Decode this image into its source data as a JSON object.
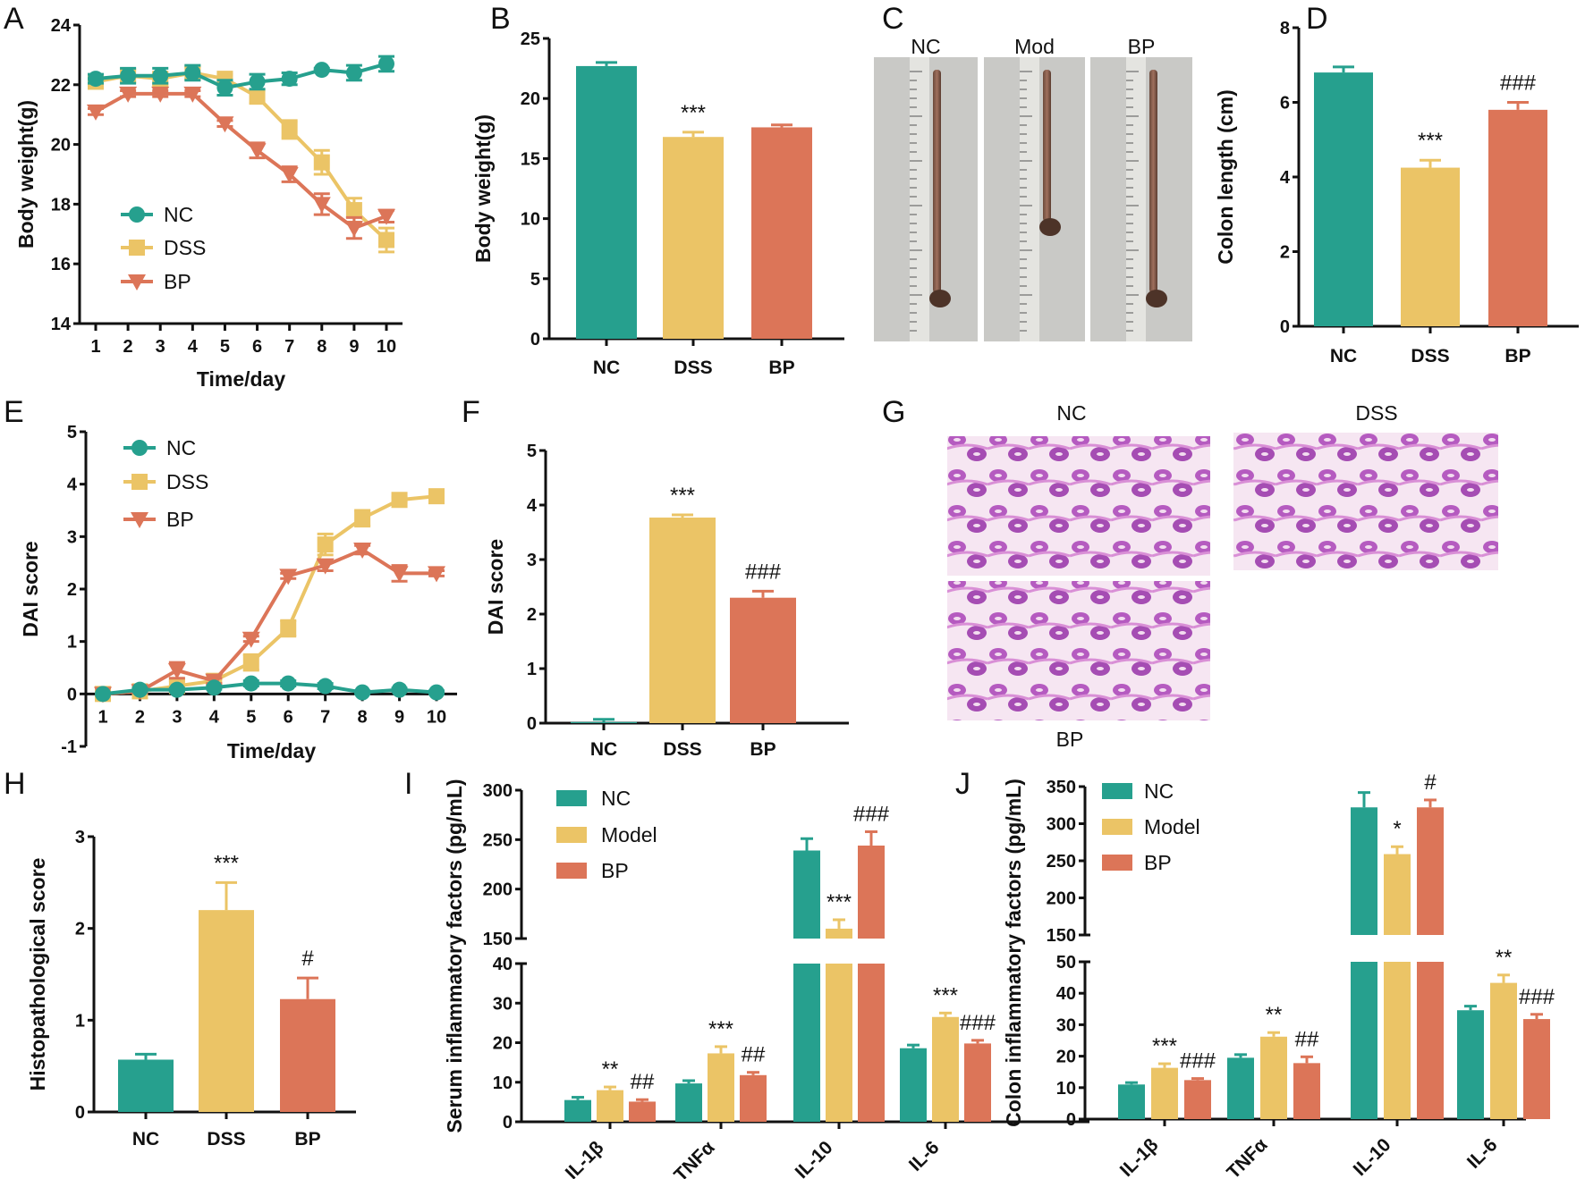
{
  "colors": {
    "NC": "#26a08e",
    "DSS": "#ebc466",
    "BP": "#dc7558",
    "axis": "#111111"
  },
  "panel_labels": [
    "A",
    "B",
    "C",
    "D",
    "E",
    "F",
    "G",
    "H",
    "I",
    "J"
  ],
  "photos_C": {
    "labels": [
      "NC",
      "Mod",
      "BP"
    ]
  },
  "histology_G": {
    "labels": [
      "NC",
      "DSS",
      "BP"
    ]
  },
  "chart_data": [
    {
      "id": "A",
      "type": "line",
      "title": "",
      "xlabel": "Time/day",
      "ylabel": "Body weight(g)",
      "ylim": [
        14,
        24
      ],
      "yticks": [
        14,
        16,
        18,
        20,
        22,
        24
      ],
      "x": [
        1,
        2,
        3,
        4,
        5,
        6,
        7,
        8,
        9,
        10
      ],
      "legend_position": "bottom-left",
      "series": [
        {
          "name": "NC",
          "marker": "circle",
          "values": [
            22.2,
            22.3,
            22.3,
            22.4,
            21.9,
            22.1,
            22.2,
            22.5,
            22.4,
            22.7
          ],
          "err": [
            0.15,
            0.25,
            0.25,
            0.25,
            0.25,
            0.25,
            0.2,
            0.05,
            0.25,
            0.25
          ]
        },
        {
          "name": "DSS",
          "marker": "square",
          "values": [
            22.1,
            22.3,
            22.2,
            22.4,
            22.2,
            21.6,
            20.5,
            19.4,
            17.8,
            16.8
          ],
          "err": [
            0.2,
            0.2,
            0.2,
            0.2,
            0.15,
            0.2,
            0.3,
            0.4,
            0.4,
            0.4
          ]
        },
        {
          "name": "BP",
          "marker": "triangle-down",
          "values": [
            21.1,
            21.7,
            21.7,
            21.7,
            20.7,
            19.8,
            19.0,
            18.0,
            17.2,
            17.6
          ],
          "err": [
            0.1,
            0.1,
            0.1,
            0.1,
            0.1,
            0.25,
            0.25,
            0.35,
            0.35,
            0.2
          ]
        }
      ]
    },
    {
      "id": "B",
      "type": "bar",
      "title": "",
      "xlabel": "",
      "ylabel": "Body weight(g)",
      "ylim": [
        0,
        25
      ],
      "yticks": [
        0,
        5,
        10,
        15,
        20,
        25
      ],
      "categories": [
        "NC",
        "DSS",
        "BP"
      ],
      "values": [
        22.7,
        16.8,
        17.6
      ],
      "err": [
        0.3,
        0.4,
        0.2
      ],
      "annotations": [
        "",
        "***",
        ""
      ]
    },
    {
      "id": "D",
      "type": "bar",
      "title": "",
      "xlabel": "",
      "ylabel": "Colon length (cm)",
      "ylim": [
        0,
        8
      ],
      "yticks": [
        0,
        2,
        4,
        6,
        8
      ],
      "categories": [
        "NC",
        "DSS",
        "BP"
      ],
      "values": [
        6.8,
        4.25,
        5.8
      ],
      "err": [
        0.15,
        0.2,
        0.2
      ],
      "annotations": [
        "",
        "***",
        "###"
      ]
    },
    {
      "id": "E",
      "type": "line",
      "title": "",
      "xlabel": "Time/day",
      "ylabel": "DAI score",
      "ylim": [
        -1,
        5
      ],
      "yticks": [
        -1,
        0,
        1,
        2,
        3,
        4,
        5
      ],
      "x": [
        1,
        2,
        3,
        4,
        5,
        6,
        7,
        8,
        9,
        10
      ],
      "legend_position": "top-left",
      "series": [
        {
          "name": "NC",
          "marker": "circle",
          "values": [
            0,
            0.08,
            0.08,
            0.12,
            0.2,
            0.2,
            0.15,
            0.03,
            0.08,
            0.03
          ],
          "err": [
            0,
            0.03,
            0.03,
            0.03,
            0.05,
            0.05,
            0.05,
            0.03,
            0.03,
            0.03
          ]
        },
        {
          "name": "DSS",
          "marker": "square",
          "values": [
            0,
            0.05,
            0.15,
            0.25,
            0.6,
            1.25,
            2.85,
            3.35,
            3.7,
            3.77
          ],
          "err": [
            0,
            0.03,
            0.1,
            0.05,
            0.15,
            0.15,
            0.2,
            0.15,
            0.05,
            0.05
          ]
        },
        {
          "name": "BP",
          "marker": "triangle-down",
          "values": [
            0,
            0.05,
            0.45,
            0.25,
            1.05,
            2.25,
            2.45,
            2.75,
            2.3,
            2.3
          ],
          "err": [
            0,
            0.03,
            0.15,
            0.05,
            0.05,
            0.05,
            0.1,
            0.08,
            0.15,
            0.05
          ]
        }
      ]
    },
    {
      "id": "F",
      "type": "bar",
      "title": "",
      "xlabel": "",
      "ylabel": "DAI score",
      "ylim": [
        0,
        5
      ],
      "yticks": [
        0,
        1,
        2,
        3,
        4,
        5
      ],
      "categories": [
        "NC",
        "DSS",
        "BP"
      ],
      "values": [
        0.02,
        3.77,
        2.3
      ],
      "err": [
        0.05,
        0.05,
        0.12
      ],
      "annotations": [
        "",
        "***",
        "###"
      ]
    },
    {
      "id": "H",
      "type": "bar",
      "title": "",
      "xlabel": "",
      "ylabel": "Histopathological score",
      "ylim": [
        0,
        3
      ],
      "yticks": [
        0,
        1,
        2,
        3
      ],
      "categories": [
        "NC",
        "DSS",
        "BP"
      ],
      "values": [
        0.57,
        2.2,
        1.23
      ],
      "err": [
        0.06,
        0.3,
        0.23
      ],
      "annotations": [
        "",
        "***",
        "#"
      ]
    },
    {
      "id": "I",
      "type": "bar",
      "title": "",
      "xlabel": "",
      "ylabel": "Serum inflammatory factors (pg/mL)",
      "ylim": [
        0,
        300
      ],
      "axis_break": {
        "lower": [
          0,
          40
        ],
        "upper": [
          150,
          300
        ]
      },
      "yticks_lower": [
        0,
        10,
        20,
        30,
        40
      ],
      "yticks_upper": [
        150,
        200,
        250,
        300
      ],
      "categories": [
        "IL-1β",
        "TNFα",
        "IL-10",
        "IL-6"
      ],
      "legend_position": "top-left",
      "series": [
        {
          "name": "NC",
          "values": [
            5.5,
            9.7,
            239,
            18.6
          ],
          "err": [
            0.7,
            0.7,
            12,
            0.8
          ],
          "annotations": [
            "",
            "",
            "",
            ""
          ]
        },
        {
          "name": "Model",
          "values": [
            8.0,
            17.3,
            160,
            26.5
          ],
          "err": [
            0.8,
            1.7,
            9,
            1.0
          ],
          "annotations": [
            "**",
            "***",
            "***",
            "***"
          ]
        },
        {
          "name": "BP",
          "values": [
            5.1,
            11.8,
            244,
            19.8
          ],
          "err": [
            0.5,
            0.7,
            14,
            0.8
          ],
          "annotations": [
            "##",
            "##",
            "###",
            "###"
          ]
        }
      ]
    },
    {
      "id": "J",
      "type": "bar",
      "title": "",
      "xlabel": "",
      "ylabel": "Colon inflammatory factors (pg/mL)",
      "ylim": [
        0,
        350
      ],
      "axis_break": {
        "lower": [
          0,
          50
        ],
        "upper": [
          150,
          350
        ]
      },
      "yticks_lower": [
        0,
        10,
        20,
        30,
        40,
        50
      ],
      "yticks_upper": [
        150,
        200,
        250,
        300,
        350
      ],
      "categories": [
        "IL-1β",
        "TNFα",
        "IL-10",
        "IL-6"
      ],
      "legend_position": "top-left",
      "series": [
        {
          "name": "NC",
          "values": [
            11.0,
            19.5,
            322,
            34.6
          ],
          "err": [
            0.6,
            1.0,
            20,
            1.3
          ],
          "annotations": [
            "",
            "",
            "",
            ""
          ]
        },
        {
          "name": "Model",
          "values": [
            16.3,
            26.2,
            259,
            43.3
          ],
          "err": [
            1.3,
            1.3,
            10,
            2.5
          ],
          "annotations": [
            "***",
            "**",
            "*",
            "**"
          ]
        },
        {
          "name": "BP",
          "values": [
            12.4,
            17.8,
            322,
            31.8
          ],
          "err": [
            0.5,
            2.0,
            10,
            1.5
          ],
          "annotations": [
            "###",
            "##",
            "#",
            "###"
          ]
        }
      ]
    }
  ]
}
